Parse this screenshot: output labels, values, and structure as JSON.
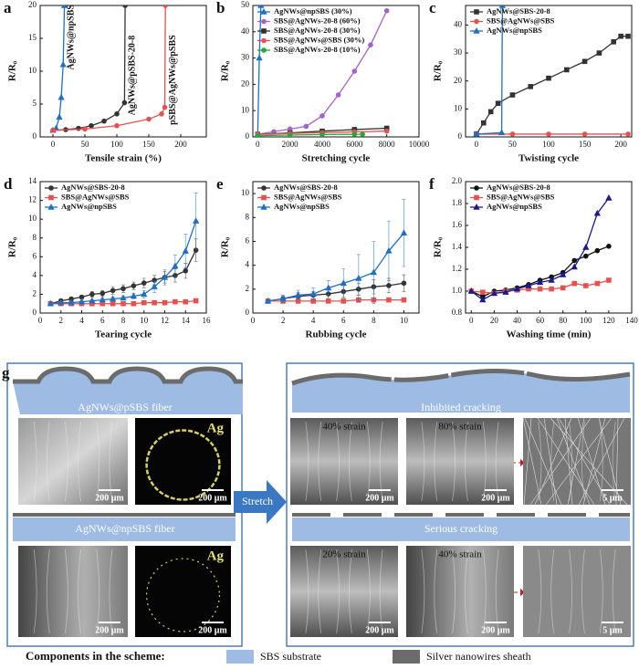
{
  "chart_data": [
    {
      "type": "line",
      "label": "a",
      "xlabel": "Tensile strain (%)",
      "ylabel": "R/R₀",
      "xlim": [
        -20,
        240
      ],
      "xticks": [
        0,
        50,
        100,
        150,
        200
      ],
      "ylim": [
        0,
        20
      ],
      "yticks": [
        0,
        5,
        10,
        15,
        20
      ],
      "legend": "inline",
      "series": [
        {
          "name": "AgNWs@npSBS",
          "color": "#1f6fc5",
          "marker": "triangle",
          "x": [
            0,
            5,
            10,
            13,
            16,
            18
          ],
          "values": [
            1,
            1.3,
            3,
            6,
            11,
            20
          ]
        },
        {
          "name": "AgNWs@pSBS-20-8",
          "color": "#333333",
          "marker": "circle",
          "x": [
            0,
            20,
            40,
            60,
            80,
            100,
            112,
            113
          ],
          "values": [
            1,
            1.1,
            1.3,
            1.7,
            2.4,
            3.5,
            5.2,
            20
          ]
        },
        {
          "name": "pSBS@AgNWs@pSBS",
          "color": "#e8504f",
          "marker": "circle",
          "x": [
            0,
            50,
            100,
            150,
            170,
            175,
            176
          ],
          "values": [
            1,
            1.2,
            1.7,
            2.7,
            3.5,
            4.5,
            20
          ]
        }
      ]
    },
    {
      "type": "line",
      "label": "b",
      "xlabel": "Stretching cycle",
      "ylabel": "R/R₀",
      "xlim": [
        -300,
        10000
      ],
      "xticks": [
        0,
        2000,
        4000,
        6000,
        8000,
        10000
      ],
      "ylim": [
        0,
        50
      ],
      "yticks": [
        0,
        10,
        20,
        30,
        40,
        50
      ],
      "legend": "upper left",
      "series": [
        {
          "name": "AgNWs@npSBS (30%)",
          "color": "#1f6fc5",
          "marker": "triangle",
          "x": [
            0,
            100,
            200
          ],
          "values": [
            1,
            30,
            50
          ]
        },
        {
          "name": "SBS@AgNWs-20-8 (60%)",
          "color": "#a463c8",
          "marker": "circle",
          "x": [
            0,
            1000,
            2000,
            3000,
            4000,
            5000,
            6000,
            7000,
            8000
          ],
          "values": [
            1,
            2,
            3,
            4,
            8,
            16,
            25,
            35,
            48
          ]
        },
        {
          "name": "SBS@AgNWs-20-8 (30%)",
          "color": "#333333",
          "marker": "square",
          "x": [
            0,
            2000,
            4000,
            6000,
            8000
          ],
          "values": [
            1,
            1.5,
            2.2,
            2.8,
            3.3
          ]
        },
        {
          "name": "SBS@AgNWs@SBS (30%)",
          "color": "#e8504f",
          "marker": "circle",
          "x": [
            0,
            2000,
            4000,
            6000,
            8000
          ],
          "values": [
            1,
            1.3,
            1.6,
            1.9,
            2.2
          ]
        },
        {
          "name": "SBS@AgNWs-20-8 (10%)",
          "color": "#2aa53b",
          "marker": "circle",
          "x": [
            0,
            2000,
            4000,
            6000,
            6500
          ],
          "values": [
            0.5,
            0.7,
            0.9,
            1,
            1
          ]
        }
      ]
    },
    {
      "type": "line",
      "label": "c",
      "xlabel": "Twisting cycle",
      "ylabel": "R/R₀",
      "xlim": [
        -15,
        215
      ],
      "xticks": [
        0,
        50,
        100,
        150,
        200
      ],
      "ylim": [
        0,
        47
      ],
      "yticks": [
        0,
        10,
        20,
        30,
        40
      ],
      "legend": "upper left",
      "series": [
        {
          "name": "AgNWs@SBS-20-8",
          "color": "#333333",
          "marker": "square",
          "x": [
            0,
            10,
            20,
            30,
            50,
            75,
            100,
            125,
            150,
            170,
            190,
            200,
            210
          ],
          "values": [
            1,
            5,
            9,
            12,
            15,
            18,
            21,
            24,
            27,
            30,
            34,
            36,
            36
          ]
        },
        {
          "name": "SBS@AgNWs@SBS",
          "color": "#e8504f",
          "marker": "circle",
          "x": [
            0,
            50,
            100,
            150,
            210
          ],
          "values": [
            1,
            1,
            1,
            1,
            1
          ]
        },
        {
          "name": "AgNWs@npSBS",
          "color": "#1f6fc5",
          "marker": "triangle",
          "x": [
            0,
            35,
            36
          ],
          "values": [
            1,
            1.5,
            47
          ]
        }
      ]
    },
    {
      "type": "line",
      "label": "d",
      "xlabel": "Tearing cycle",
      "ylabel": "R/R₀",
      "xlim": [
        0,
        16
      ],
      "xticks": [
        0,
        2,
        4,
        6,
        8,
        10,
        12,
        14,
        16
      ],
      "ylim": [
        0,
        14
      ],
      "yticks": [
        0,
        2,
        4,
        6,
        8,
        10,
        12,
        14
      ],
      "legend": "upper left",
      "series": [
        {
          "name": "AgNWs@SBS-20-8",
          "color": "#333333",
          "marker": "circle",
          "x": [
            1,
            2,
            3,
            4,
            5,
            6,
            7,
            8,
            9,
            10,
            11,
            12,
            13,
            14,
            15
          ],
          "values": [
            1,
            1.3,
            1.5,
            1.7,
            2,
            2.1,
            2.4,
            2.6,
            2.9,
            3.2,
            3.5,
            3.8,
            4,
            4.5,
            6.7
          ],
          "errors": [
            0.1,
            0.2,
            0.2,
            0.2,
            0.3,
            0.3,
            0.4,
            0.4,
            0.4,
            0.5,
            0.5,
            0.6,
            0.7,
            0.8,
            1.2
          ]
        },
        {
          "name": "SBS@AgNWs@SBS",
          "color": "#e8504f",
          "marker": "square",
          "x": [
            1,
            2,
            3,
            4,
            5,
            6,
            7,
            8,
            9,
            10,
            11,
            12,
            13,
            14,
            15
          ],
          "values": [
            1,
            1,
            1,
            1,
            1,
            1,
            1,
            1,
            1,
            1.1,
            1.1,
            1.1,
            1.2,
            1.2,
            1.3
          ]
        },
        {
          "name": "AgNWs@npSBS",
          "color": "#1f6fc5",
          "marker": "triangle",
          "x": [
            1,
            2,
            3,
            4,
            5,
            6,
            7,
            8,
            9,
            10,
            11,
            12,
            13,
            14,
            15
          ],
          "values": [
            1,
            1.1,
            1.1,
            1.2,
            1.3,
            1.4,
            1.5,
            1.6,
            1.8,
            2,
            2.8,
            3.8,
            5,
            6.6,
            9.8
          ],
          "errors": [
            0.1,
            0.1,
            0.1,
            0.1,
            0.1,
            0.2,
            0.2,
            0.2,
            0.3,
            0.4,
            0.6,
            0.8,
            1.2,
            1.8,
            3
          ]
        }
      ]
    },
    {
      "type": "line",
      "label": "e",
      "xlabel": "Rubbing cycle",
      "ylabel": "R/R₀",
      "xlim": [
        0,
        11
      ],
      "xticks": [
        0,
        2,
        4,
        6,
        8,
        10
      ],
      "ylim": [
        0,
        11
      ],
      "yticks": [
        0,
        2,
        4,
        6,
        8,
        10
      ],
      "legend": "upper left",
      "series": [
        {
          "name": "AgNWs@SBS-20-8",
          "color": "#333333",
          "marker": "circle",
          "x": [
            1,
            2,
            3,
            4,
            5,
            6,
            7,
            8,
            9,
            10
          ],
          "values": [
            1,
            1.2,
            1.4,
            1.5,
            1.6,
            1.8,
            2,
            2.2,
            2.3,
            2.5
          ],
          "errors": [
            0.1,
            0.2,
            0.3,
            0.3,
            0.4,
            0.5,
            0.5,
            0.6,
            0.6,
            0.7
          ]
        },
        {
          "name": "SBS@AgNWs@SBS",
          "color": "#e8504f",
          "marker": "square",
          "x": [
            1,
            2,
            3,
            4,
            5,
            6,
            7,
            8,
            9,
            10
          ],
          "values": [
            1,
            1,
            1,
            1,
            1,
            1,
            1.1,
            1.1,
            1.1,
            1.1
          ]
        },
        {
          "name": "AgNWs@npSBS",
          "color": "#1f6fc5",
          "marker": "triangle",
          "x": [
            1,
            2,
            3,
            4,
            5,
            6,
            7,
            8,
            9,
            10
          ],
          "values": [
            1,
            1.2,
            1.5,
            1.6,
            2.1,
            2.5,
            2.9,
            3.4,
            5.2,
            6.7
          ],
          "errors": [
            0.1,
            0.3,
            0.4,
            0.5,
            0.6,
            1.2,
            2,
            2.6,
            2.5,
            2.8
          ]
        }
      ]
    },
    {
      "type": "line",
      "label": "f",
      "xlabel": "Washing time (min)",
      "ylabel": "R/R₀",
      "xlim": [
        -5,
        140
      ],
      "xticks": [
        0,
        20,
        40,
        60,
        80,
        100,
        120,
        140
      ],
      "ylim": [
        0.8,
        2.0
      ],
      "yticks": [
        0.8,
        {
          "value": 1,
          "label": "1.0"
        },
        1.2,
        1.4,
        1.6,
        1.8,
        {
          "value": 2,
          "label": "2.0"
        }
      ],
      "legend": "upper left",
      "series": [
        {
          "name": "AgNWs@SBS-20-8",
          "color": "#111111",
          "marker": "circle",
          "x": [
            0,
            10,
            20,
            30,
            40,
            50,
            60,
            70,
            80,
            90,
            100,
            110,
            120
          ],
          "values": [
            1,
            0.95,
            1,
            1.01,
            1.03,
            1.06,
            1.1,
            1.13,
            1.17,
            1.28,
            1.32,
            1.37,
            1.41
          ]
        },
        {
          "name": "SBS@AgNWs@SBS",
          "color": "#e8504f",
          "marker": "square",
          "x": [
            0,
            10,
            20,
            30,
            40,
            50,
            60,
            70,
            80,
            90,
            100,
            110,
            120
          ],
          "values": [
            1,
            0.99,
            0.98,
            1,
            1.01,
            1.02,
            1.02,
            1.02,
            1.03,
            1.07,
            1.05,
            1.07,
            1.1
          ]
        },
        {
          "name": "AgNWs@npSBS",
          "color": "#1a1a8c",
          "marker": "triangle",
          "x": [
            0,
            10,
            20,
            30,
            40,
            50,
            60,
            70,
            80,
            90,
            100,
            110,
            120
          ],
          "values": [
            1,
            0.92,
            0.98,
            0.99,
            1.02,
            1.05,
            1.08,
            1.1,
            1.15,
            1.22,
            1.4,
            1.71,
            1.85
          ]
        }
      ]
    }
  ],
  "panel_g": {
    "label": "g",
    "psbs_title": "AgNWs@pSBS fiber",
    "npsbs_title": "AgNWs@npSBS fiber",
    "arrow": "Stretch",
    "inhibited": "Inhibited cracking",
    "serious": "Serious cracking",
    "images": [
      {
        "scale": "200 μm"
      },
      {
        "tag": "Ag",
        "scale": "200 μm"
      },
      {
        "scale": "200 μm"
      },
      {
        "tag": "Ag",
        "scale": "200 μm"
      },
      {
        "caption": "40% strain",
        "scale": "200 μm"
      },
      {
        "caption": "80% strain",
        "scale": "200 μm"
      },
      {
        "scale": "5 μm"
      },
      {
        "caption": "20% strain",
        "scale": "200 μm"
      },
      {
        "caption": "40% strain",
        "scale": "200 μm"
      },
      {
        "scale": "5 μm"
      }
    ]
  },
  "components": {
    "title": "Components in the scheme:",
    "items": [
      {
        "name": "SBS substrate",
        "color": "#9dbbe3"
      },
      {
        "name": "Silver nanowires sheath",
        "color": "#6b6b6b"
      }
    ]
  }
}
